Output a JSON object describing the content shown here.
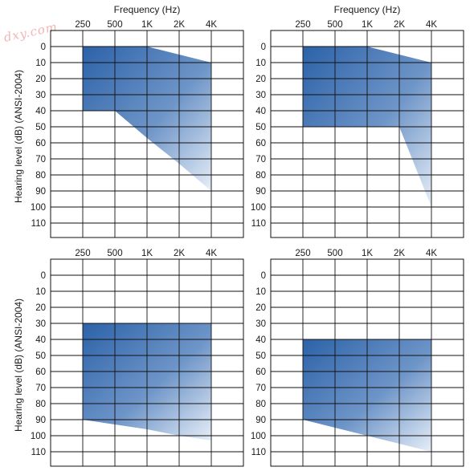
{
  "watermark": "dxy.com",
  "chart_data": [
    {
      "type": "area",
      "xlabel": "Frequency (Hz)",
      "ylabel": "Hearing level (dB) (ANSI-2004)",
      "categories": [
        "250",
        "500",
        "1K",
        "2K",
        "4K"
      ],
      "yticks": [
        "0",
        "10",
        "20",
        "30",
        "40",
        "50",
        "60",
        "70",
        "80",
        "90",
        "100",
        "110"
      ],
      "ylim": [
        0,
        110
      ],
      "upper_boundary": [
        0,
        0,
        0,
        5,
        10
      ],
      "lower_boundary": [
        40,
        40,
        57,
        73,
        90
      ],
      "colors": {
        "top": "#2c62a8",
        "bottom": "#e7eef8"
      }
    },
    {
      "type": "area",
      "xlabel": "Frequency (Hz)",
      "ylabel": "",
      "categories": [
        "250",
        "500",
        "1K",
        "2K",
        "4K"
      ],
      "yticks": [
        "0",
        "10",
        "20",
        "30",
        "40",
        "50",
        "60",
        "70",
        "80",
        "90",
        "100",
        "110"
      ],
      "ylim": [
        0,
        110
      ],
      "upper_boundary": [
        0,
        0,
        0,
        5,
        10
      ],
      "lower_boundary": [
        50,
        50,
        50,
        50,
        100
      ],
      "colors": {
        "top": "#2c62a8",
        "bottom": "#e7eef8"
      }
    },
    {
      "type": "area",
      "xlabel": "",
      "ylabel": "Hearing level (dB) (ANSI-2004)",
      "categories": [
        "250",
        "500",
        "1K",
        "2K",
        "4K"
      ],
      "yticks": [
        "0",
        "10",
        "20",
        "30",
        "40",
        "50",
        "60",
        "70",
        "80",
        "90",
        "100",
        "110"
      ],
      "ylim": [
        0,
        110
      ],
      "upper_boundary": [
        30,
        30,
        30,
        30,
        30
      ],
      "lower_boundary": [
        90,
        93,
        96,
        100,
        103
      ],
      "colors": {
        "top": "#2c62a8",
        "bottom": "#e7eef8"
      }
    },
    {
      "type": "area",
      "xlabel": "",
      "ylabel": "",
      "categories": [
        "250",
        "500",
        "1K",
        "2K",
        "4K"
      ],
      "yticks": [
        "0",
        "10",
        "20",
        "30",
        "40",
        "50",
        "60",
        "70",
        "80",
        "90",
        "100",
        "110"
      ],
      "ylim": [
        0,
        110
      ],
      "upper_boundary": [
        40,
        40,
        40,
        40,
        40
      ],
      "lower_boundary": [
        90,
        95,
        100,
        105,
        110
      ],
      "colors": {
        "top": "#2c62a8",
        "bottom": "#e7eef8"
      }
    }
  ]
}
